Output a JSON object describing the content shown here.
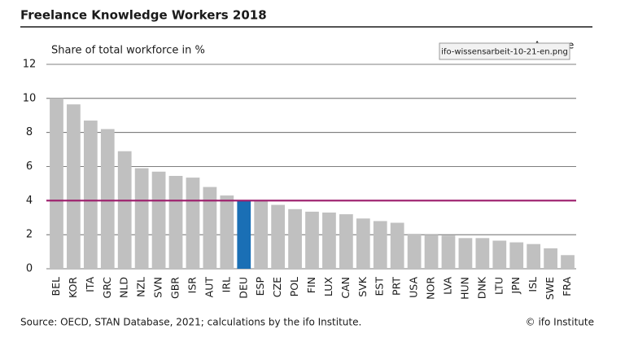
{
  "chart_data": {
    "type": "bar",
    "title": "Freelance Knowledge Workers 2018",
    "y_label": "Share of total workforce in %",
    "source": "Source: OECD, STAN Database, 2021; calculations by the ifo Institute.",
    "credit": "© ifo Institute",
    "tooltip": "ifo-wissensarbeit-10-21-en.png",
    "categories": [
      "BEL",
      "KOR",
      "ITA",
      "GRC",
      "NLD",
      "NZL",
      "SVN",
      "GBR",
      "ISR",
      "AUT",
      "IRL",
      "DEU",
      "ESP",
      "CZE",
      "POL",
      "FIN",
      "LUX",
      "CAN",
      "SVK",
      "EST",
      "PRT",
      "USA",
      "NOR",
      "LVA",
      "HUN",
      "DNK",
      "LTU",
      "JPN",
      "ISL",
      "SWE",
      "FRA"
    ],
    "values": [
      10.0,
      9.65,
      8.7,
      8.2,
      6.9,
      5.9,
      5.7,
      5.45,
      5.35,
      4.8,
      4.3,
      4.0,
      4.0,
      3.75,
      3.5,
      3.35,
      3.3,
      3.2,
      2.95,
      2.8,
      2.7,
      2.05,
      2.0,
      1.95,
      1.8,
      1.8,
      1.65,
      1.55,
      1.45,
      1.2,
      0.8
    ],
    "colors": [
      "#c0c0c0",
      "#c0c0c0",
      "#c0c0c0",
      "#c0c0c0",
      "#c0c0c0",
      "#c0c0c0",
      "#c0c0c0",
      "#c0c0c0",
      "#c0c0c0",
      "#c0c0c0",
      "#c0c0c0",
      "#1a6fb5",
      "#c0c0c0",
      "#c0c0c0",
      "#c0c0c0",
      "#c0c0c0",
      "#c0c0c0",
      "#c0c0c0",
      "#c0c0c0",
      "#c0c0c0",
      "#c0c0c0",
      "#c0c0c0",
      "#c0c0c0",
      "#c0c0c0",
      "#c0c0c0",
      "#c0c0c0",
      "#c0c0c0",
      "#c0c0c0",
      "#c0c0c0",
      "#c0c0c0",
      "#c0c0c0"
    ],
    "reference_line": {
      "name": "Average",
      "value": 4.0,
      "color": "#9c1c6b"
    },
    "ylim": [
      0,
      12
    ],
    "yticks": [
      0,
      2,
      4,
      6,
      8,
      10,
      12
    ],
    "grid": true
  }
}
